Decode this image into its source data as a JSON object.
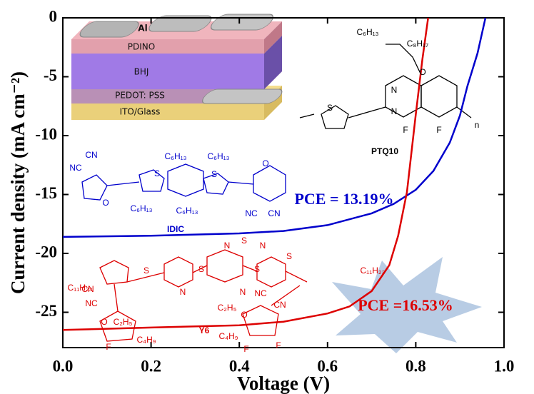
{
  "chart_data": {
    "type": "line",
    "xlabel": "Voltage (V)",
    "ylabel": "Current density (mA cm⁻²)",
    "xlim": [
      0,
      1.0
    ],
    "ylim": [
      -28,
      0
    ],
    "xticks": [
      {
        "value": 0,
        "label": "0.0"
      },
      0.2,
      0.4,
      0.6,
      0.8,
      {
        "value": 1,
        "label": "1.0"
      }
    ],
    "yticks": [
      0,
      -5,
      -10,
      -15,
      -20,
      -25
    ],
    "series": [
      {
        "name": "IDIC",
        "color": "#0000cc",
        "x": [
          0,
          0.2,
          0.4,
          0.5,
          0.6,
          0.7,
          0.75,
          0.8,
          0.84,
          0.877,
          0.9,
          0.917,
          0.94,
          0.958
        ],
        "values": [
          -18.6,
          -18.5,
          -18.3,
          -18.1,
          -17.6,
          -16.6,
          -15.8,
          -14.6,
          -13.0,
          -10.6,
          -8.3,
          -5.8,
          -3.0,
          0
        ]
      },
      {
        "name": "Y6",
        "color": "#dd0000",
        "x": [
          0,
          0.2,
          0.4,
          0.5,
          0.6,
          0.65,
          0.7,
          0.74,
          0.76,
          0.78,
          0.8,
          0.815,
          0.828
        ],
        "values": [
          -26.5,
          -26.3,
          -26.1,
          -25.8,
          -25.1,
          -24.5,
          -23.2,
          -21.0,
          -18.5,
          -14.8,
          -8.2,
          -3.5,
          0
        ]
      }
    ],
    "annotations": [
      {
        "text": "PCE = 13.19%",
        "color": "#0000cc"
      },
      {
        "text": "PCE =16.53%",
        "color": "#dd0000"
      }
    ],
    "device_layers": [
      "Al",
      "PDINO",
      "BHJ",
      "PEDOT: PSS",
      "ITO/Glass"
    ],
    "molecules": [
      {
        "name": "PTQ10",
        "color": "#000000",
        "atoms": [
          "C₆H₁₃",
          "C₈H₁₇",
          "O",
          "N",
          "N",
          "S",
          "F",
          "F",
          "n"
        ]
      },
      {
        "name": "IDIC",
        "color": "#0000cc",
        "atoms": [
          "CN",
          "NC",
          "S",
          "S",
          "C₆H₁₃",
          "C₆H₁₃",
          "C₆H₁₃",
          "C₆H₁₃",
          "O",
          "O",
          "NC",
          "CN"
        ]
      },
      {
        "name": "Y6",
        "color": "#dd0000",
        "atoms": [
          "N",
          "S",
          "N",
          "C₁₁H₂₃",
          "C₁₁H₂₃",
          "S",
          "S",
          "S",
          "S",
          "N",
          "N",
          "C₂H₅",
          "C₄H₉",
          "C₂H₅",
          "C₄H₉",
          "CN",
          "NC",
          "NC",
          "CN",
          "O",
          "O",
          "F",
          "F",
          "F",
          "F"
        ]
      }
    ]
  }
}
